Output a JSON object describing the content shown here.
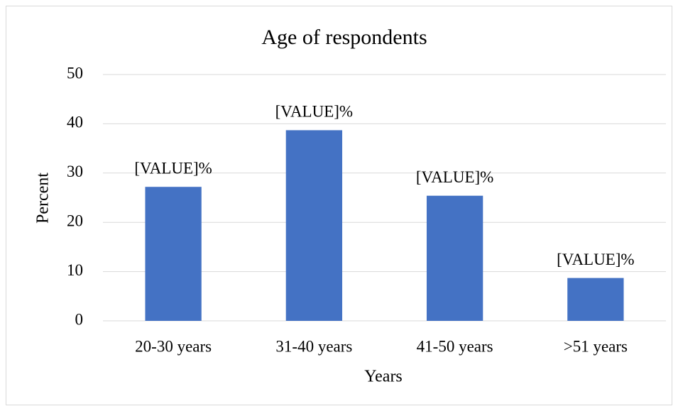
{
  "chart_data": {
    "type": "bar",
    "title": "Age of respondents",
    "x_label": "Years",
    "y_label": "Percent",
    "categories": [
      "20-30 years",
      "31-40 years",
      "41-50 years",
      ">51 years"
    ],
    "values": [
      27.2,
      38.7,
      25.4,
      8.7
    ],
    "value_labels": [
      "[VALUE]%",
      "[VALUE]%",
      "[VALUE]%",
      "[VALUE]%"
    ],
    "color": "#4472c4",
    "ylim": [
      0,
      50
    ],
    "yticks": [
      0,
      10,
      20,
      30,
      40,
      50
    ],
    "grid": true
  }
}
